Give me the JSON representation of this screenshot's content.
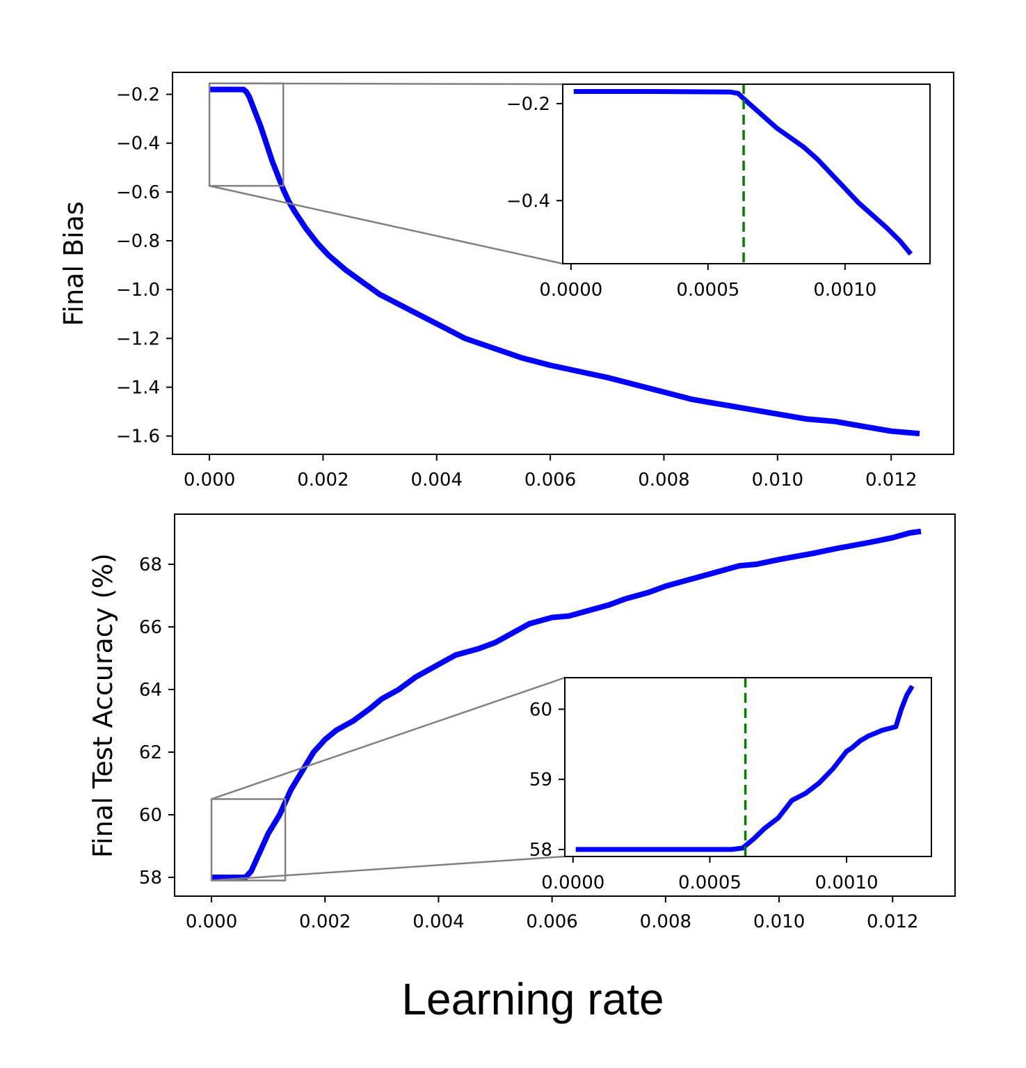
{
  "figure": {
    "xlabel": "Learning rate"
  },
  "colors": {
    "series": "#0000ff",
    "threshold": "#008000",
    "zoom_box": "#808080"
  },
  "chart_data": [
    {
      "type": "line",
      "ylabel": "Final Bias",
      "xlabel": "",
      "xlim": [
        -0.00065,
        0.0131
      ],
      "ylim": [
        -1.675,
        -0.11
      ],
      "x_ticks": [
        0.0,
        0.002,
        0.004,
        0.006,
        0.008,
        0.01,
        0.012
      ],
      "x_tick_labels": [
        "0.000",
        "0.002",
        "0.004",
        "0.006",
        "0.008",
        "0.010",
        "0.012"
      ],
      "y_ticks": [
        -0.2,
        -0.4,
        -0.6,
        -0.8,
        -1.0,
        -1.2,
        -1.4,
        -1.6
      ],
      "y_tick_labels": [
        "−0.2",
        "−0.4",
        "−0.6",
        "−0.8",
        "−1.0",
        "−1.2",
        "−1.4",
        "−1.6"
      ],
      "grid": false,
      "series": [
        {
          "x": [
            0.0,
            0.0003,
            0.0006,
            0.00065,
            0.0007,
            0.0008,
            0.0009,
            0.001,
            0.0011,
            0.0012,
            0.0013,
            0.0014,
            0.0015,
            0.0017,
            0.0019,
            0.0021,
            0.0024,
            0.0027,
            0.003,
            0.0035,
            0.004,
            0.0045,
            0.005,
            0.0055,
            0.006,
            0.0066,
            0.007,
            0.0075,
            0.008,
            0.0085,
            0.009,
            0.0095,
            0.01,
            0.0105,
            0.011,
            0.0115,
            0.012,
            0.0125
          ],
          "y": [
            -0.18,
            -0.18,
            -0.18,
            -0.19,
            -0.21,
            -0.27,
            -0.33,
            -0.4,
            -0.47,
            -0.53,
            -0.59,
            -0.64,
            -0.68,
            -0.75,
            -0.81,
            -0.86,
            -0.92,
            -0.97,
            -1.02,
            -1.08,
            -1.14,
            -1.2,
            -1.24,
            -1.28,
            -1.31,
            -1.34,
            -1.36,
            -1.39,
            -1.42,
            -1.45,
            -1.47,
            -1.49,
            -1.51,
            -1.53,
            -1.54,
            -1.56,
            -1.58,
            -1.59
          ]
        }
      ],
      "zoom_box": {
        "x": [
          0.0,
          0.0013
        ],
        "y": [
          -0.575,
          -0.155
        ]
      },
      "inset": {
        "xlim": [
          -3e-05,
          0.00131
        ],
        "ylim": [
          -0.53,
          -0.16
        ],
        "x_ticks": [
          0.0,
          0.0005,
          0.001
        ],
        "x_tick_labels": [
          "0.0000",
          "0.0005",
          "0.0010"
        ],
        "y_ticks": [
          -0.2,
          -0.4
        ],
        "y_tick_labels": [
          "−0.2",
          "−0.4"
        ],
        "threshold_x": 0.00063,
        "series": {
          "x": [
            1e-05,
            0.0003,
            0.00058,
            0.00061,
            0.00063,
            0.00066,
            0.0007,
            0.00075,
            0.0008,
            0.00085,
            0.0009,
            0.00095,
            0.001,
            0.00105,
            0.0011,
            0.00115,
            0.0012,
            0.00124
          ],
          "y": [
            -0.175,
            -0.175,
            -0.176,
            -0.179,
            -0.19,
            -0.205,
            -0.225,
            -0.25,
            -0.27,
            -0.29,
            -0.315,
            -0.345,
            -0.375,
            -0.405,
            -0.43,
            -0.455,
            -0.483,
            -0.51
          ]
        }
      }
    },
    {
      "type": "line",
      "ylabel": "Final Test Accuracy (%)",
      "xlabel": "",
      "xlim": [
        -0.00065,
        0.0131
      ],
      "ylim": [
        57.4,
        69.6
      ],
      "x_ticks": [
        0.0,
        0.002,
        0.004,
        0.006,
        0.008,
        0.01,
        0.012
      ],
      "x_tick_labels": [
        "0.000",
        "0.002",
        "0.004",
        "0.006",
        "0.008",
        "0.010",
        "0.012"
      ],
      "y_ticks": [
        58,
        60,
        62,
        64,
        66,
        68
      ],
      "y_tick_labels": [
        "58",
        "60",
        "62",
        "64",
        "66",
        "68"
      ],
      "grid": false,
      "series": [
        {
          "x": [
            0.0,
            0.0003,
            0.0006,
            0.0007,
            0.0008,
            0.0009,
            0.001,
            0.0011,
            0.0012,
            0.0013,
            0.0014,
            0.0016,
            0.0018,
            0.002,
            0.0022,
            0.0025,
            0.0028,
            0.003,
            0.0033,
            0.0036,
            0.004,
            0.0043,
            0.0047,
            0.005,
            0.0053,
            0.0056,
            0.006,
            0.0063,
            0.0066,
            0.007,
            0.0073,
            0.0077,
            0.008,
            0.0083,
            0.0086,
            0.009,
            0.0093,
            0.0096,
            0.01,
            0.0103,
            0.0106,
            0.011,
            0.0113,
            0.0116,
            0.012,
            0.0123,
            0.0125
          ],
          "y": [
            58.0,
            58.0,
            58.0,
            58.2,
            58.6,
            59.0,
            59.4,
            59.7,
            60.0,
            60.4,
            60.8,
            61.4,
            62.0,
            62.4,
            62.7,
            63.0,
            63.4,
            63.7,
            64.0,
            64.4,
            64.8,
            65.1,
            65.3,
            65.5,
            65.8,
            66.1,
            66.3,
            66.35,
            66.5,
            66.7,
            66.9,
            67.1,
            67.3,
            67.45,
            67.6,
            67.8,
            67.95,
            68.0,
            68.15,
            68.25,
            68.35,
            68.5,
            68.6,
            68.7,
            68.85,
            69.0,
            69.05
          ]
        }
      ],
      "zoom_box": {
        "x": [
          0.0,
          0.0013
        ],
        "y": [
          57.9,
          60.5
        ]
      },
      "inset": {
        "xlim": [
          -3e-05,
          0.00131
        ],
        "ylim": [
          57.9,
          60.45
        ],
        "x_ticks": [
          0.0,
          0.0005,
          0.001
        ],
        "x_tick_labels": [
          "0.0000",
          "0.0005",
          "0.0010"
        ],
        "y_ticks": [
          58,
          59,
          60
        ],
        "y_tick_labels": [
          "58",
          "59",
          "60"
        ],
        "threshold_x": 0.00063,
        "series": {
          "x": [
            1e-05,
            0.0002,
            0.0004,
            0.00058,
            0.00062,
            0.00066,
            0.0007,
            0.00075,
            0.0008,
            0.00085,
            0.0009,
            0.00095,
            0.00098,
            0.001,
            0.00102,
            0.00105,
            0.00108,
            0.0011,
            0.00113,
            0.00115,
            0.00118,
            0.0012,
            0.00122,
            0.00124
          ],
          "y": [
            58.0,
            58.0,
            58.0,
            58.0,
            58.02,
            58.15,
            58.3,
            58.45,
            58.7,
            58.8,
            58.95,
            59.15,
            59.3,
            59.4,
            59.45,
            59.55,
            59.62,
            59.65,
            59.7,
            59.72,
            59.75,
            60.0,
            60.2,
            60.33
          ]
        }
      }
    }
  ]
}
